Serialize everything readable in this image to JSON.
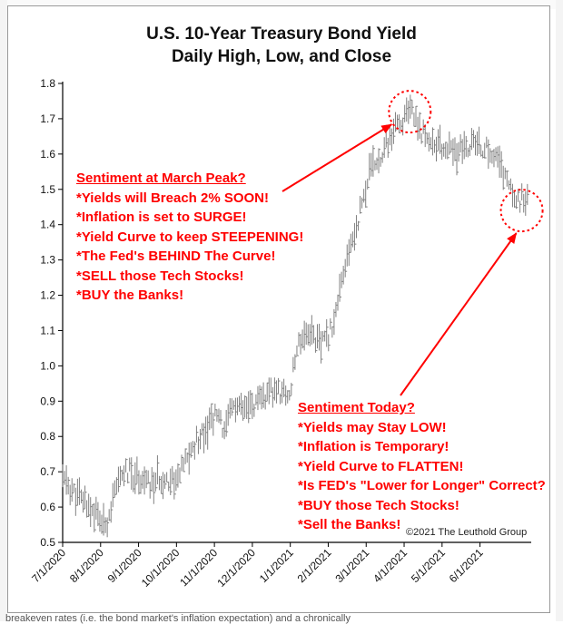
{
  "page": {
    "credit": "©2021 The Leuthold Group",
    "footer_fragment": "breakeven rates (i.e. the bond market's inflation expectation) and a chronically"
  },
  "annotations": {
    "peak": {
      "heading": "Sentiment at March Peak?",
      "lines": [
        "*Yields will Breach 2% SOON!",
        "*Inflation is set to SURGE!",
        "*Yield Curve to keep STEEPENING!",
        "*The Fed's BEHIND The Curve!",
        "*SELL those Tech Stocks!",
        "*BUY the Banks!"
      ]
    },
    "today": {
      "heading": "Sentiment Today?",
      "lines": [
        "*Yields may Stay LOW!",
        "*Inflation is Temporary!",
        "*Yield Curve to FLATTEN!",
        "*Is FED's \"Lower for Longer\" Correct?",
        "*BUY those Tech Stocks!",
        "*Sell the Banks!"
      ]
    }
  },
  "chart_data": {
    "type": "line",
    "title": "U.S. 10-Year Treasury Bond Yield",
    "subtitle": "Daily High, Low, and Close",
    "xlabel": "",
    "ylabel": "",
    "ylim": [
      0.5,
      1.8
    ],
    "yticks": [
      "0.5",
      "0.6",
      "0.7",
      "0.8",
      "0.9",
      "1.0",
      "1.1",
      "1.2",
      "1.3",
      "1.4",
      "1.5",
      "1.6",
      "1.7",
      "1.8"
    ],
    "xtick_labels": [
      "7/1/2020",
      "8/1/2020",
      "9/1/2020",
      "10/1/2020",
      "11/1/2020",
      "12/1/2020",
      "1/1/2021",
      "2/1/2021",
      "3/1/2021",
      "4/1/2021",
      "5/1/2021",
      "6/1/2021"
    ],
    "xlim_months": [
      0,
      12.35
    ],
    "grid": false,
    "colors": {
      "bars": "#808080",
      "annotation": "#ff0000",
      "axis": "#000000"
    },
    "circled_regions": [
      {
        "center_month": 9.15,
        "center_yield": 1.72
      },
      {
        "center_month": 12.1,
        "center_yield": 1.44
      }
    ],
    "series": [
      {
        "kind": "daily_high_low_close",
        "key_points": [
          {
            "month": 0.0,
            "yield": 0.68
          },
          {
            "month": 0.3,
            "yield": 0.64
          },
          {
            "month": 0.6,
            "yield": 0.61
          },
          {
            "month": 0.9,
            "yield": 0.58
          },
          {
            "month": 1.1,
            "yield": 0.54
          },
          {
            "month": 1.3,
            "yield": 0.61
          },
          {
            "month": 1.6,
            "yield": 0.7
          },
          {
            "month": 2.0,
            "yield": 0.69
          },
          {
            "month": 2.3,
            "yield": 0.66
          },
          {
            "month": 2.6,
            "yield": 0.68
          },
          {
            "month": 3.0,
            "yield": 0.68
          },
          {
            "month": 3.3,
            "yield": 0.74
          },
          {
            "month": 3.6,
            "yield": 0.8
          },
          {
            "month": 4.0,
            "yield": 0.86
          },
          {
            "month": 4.3,
            "yield": 0.82
          },
          {
            "month": 4.5,
            "yield": 0.89
          },
          {
            "month": 4.8,
            "yield": 0.87
          },
          {
            "month": 5.2,
            "yield": 0.9
          },
          {
            "month": 5.6,
            "yield": 0.93
          },
          {
            "month": 6.0,
            "yield": 0.92
          },
          {
            "month": 6.2,
            "yield": 1.07
          },
          {
            "month": 6.5,
            "yield": 1.1
          },
          {
            "month": 6.8,
            "yield": 1.06
          },
          {
            "month": 7.0,
            "yield": 1.08
          },
          {
            "month": 7.2,
            "yield": 1.15
          },
          {
            "month": 7.5,
            "yield": 1.3
          },
          {
            "month": 7.8,
            "yield": 1.42
          },
          {
            "month": 8.1,
            "yield": 1.55
          },
          {
            "month": 8.4,
            "yield": 1.6
          },
          {
            "month": 8.7,
            "yield": 1.66
          },
          {
            "month": 9.0,
            "yield": 1.7
          },
          {
            "month": 9.2,
            "yield": 1.72
          },
          {
            "month": 9.5,
            "yield": 1.66
          },
          {
            "month": 9.8,
            "yield": 1.63
          },
          {
            "month": 10.0,
            "yield": 1.62
          },
          {
            "month": 10.4,
            "yield": 1.6
          },
          {
            "month": 10.8,
            "yield": 1.63
          },
          {
            "month": 11.2,
            "yield": 1.61
          },
          {
            "month": 11.5,
            "yield": 1.58
          },
          {
            "month": 11.8,
            "yield": 1.5
          },
          {
            "month": 12.0,
            "yield": 1.47
          },
          {
            "month": 12.25,
            "yield": 1.47
          }
        ]
      }
    ]
  }
}
